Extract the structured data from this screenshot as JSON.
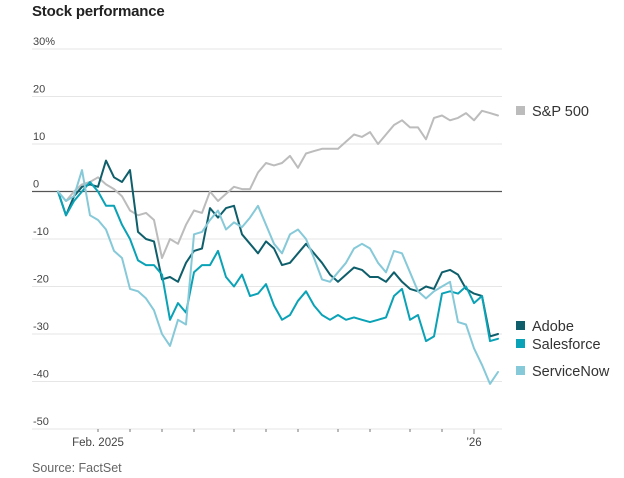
{
  "chart_data": {
    "type": "line",
    "title": "Stock performance",
    "source": "Source: FactSet",
    "xlabel": "",
    "ylabel": "",
    "ylim": [
      -50,
      30
    ],
    "y_ticks": [
      {
        "value": 30,
        "label": "30%"
      },
      {
        "value": 20,
        "label": "20"
      },
      {
        "value": 10,
        "label": "10"
      },
      {
        "value": 0,
        "label": "0"
      },
      {
        "value": -10,
        "label": "-10"
      },
      {
        "value": -20,
        "label": "-20"
      },
      {
        "value": -30,
        "label": "-30"
      },
      {
        "value": -40,
        "label": "-40"
      },
      {
        "value": -50,
        "label": "-50"
      }
    ],
    "x_range": [
      0,
      55
    ],
    "x_ticks": [
      {
        "x": 5,
        "label": "Feb. 2025"
      },
      {
        "x": 9,
        "label": ""
      },
      {
        "x": 13,
        "label": ""
      },
      {
        "x": 17,
        "label": ""
      },
      {
        "x": 22,
        "label": ""
      },
      {
        "x": 26,
        "label": ""
      },
      {
        "x": 30,
        "label": ""
      },
      {
        "x": 35,
        "label": ""
      },
      {
        "x": 39,
        "label": ""
      },
      {
        "x": 44,
        "label": ""
      },
      {
        "x": 48,
        "label": ""
      },
      {
        "x": 52,
        "label": "’26"
      }
    ],
    "grid": true,
    "series": [
      {
        "name": "S&P 500",
        "color": "#bcbcbc",
        "values": [
          0,
          -2,
          0,
          1.5,
          2,
          3,
          1.5,
          0.5,
          -1,
          -4,
          -5,
          -4.5,
          -6,
          -14,
          -10,
          -11,
          -7,
          -4,
          -4.5,
          0,
          -2,
          -0.5,
          1,
          0.5,
          0.5,
          4,
          6,
          5.5,
          6,
          7.5,
          5,
          8,
          8.5,
          9,
          9,
          9,
          10.5,
          12,
          11.5,
          12.5,
          10,
          12,
          14,
          15,
          13.5,
          13.5,
          11,
          15.5,
          16,
          15,
          15.5,
          16.5,
          15,
          17,
          16.5,
          16
        ]
      },
      {
        "name": "Adobe",
        "color": "#0e5f6b",
        "values": [
          0,
          -5,
          -1,
          1,
          1.5,
          1,
          6.5,
          3,
          2,
          4.5,
          -8.5,
          -10,
          -10.5,
          -18.5,
          -18,
          -19,
          -15,
          -12.5,
          -12,
          -3.5,
          -5.5,
          -3.5,
          -3,
          -9,
          -11,
          -13,
          -10.5,
          -12,
          -15.5,
          -15,
          -13,
          -11,
          -13,
          -15,
          -17.5,
          -19,
          -17.5,
          -16,
          -16.5,
          -18,
          -18,
          -19,
          -17,
          -19,
          -20.5,
          -21,
          -20,
          -20.5,
          -17,
          -16.5,
          -17.5,
          -20.5,
          -21.5,
          -22,
          -30.5,
          -30
        ]
      },
      {
        "name": "Salesforce",
        "color": "#0aa2b6",
        "values": [
          0,
          -5,
          -2,
          0,
          2,
          0,
          -3,
          -3,
          -7,
          -10,
          -14.5,
          -15.5,
          -15.5,
          -17.5,
          -27,
          -23.5,
          -25.5,
          -17,
          -15.5,
          -15.5,
          -12.5,
          -18,
          -20,
          -17.5,
          -22,
          -21.5,
          -19.5,
          -24,
          -27,
          -26,
          -23,
          -21,
          -24,
          -26,
          -27,
          -26,
          -27,
          -26.5,
          -27,
          -27.5,
          -27,
          -26.5,
          -22,
          -20.5,
          -27,
          -26,
          -31.5,
          -30.5,
          -21.5,
          -21,
          -21.5,
          -20,
          -23.5,
          -22,
          -31.5,
          -31
        ]
      },
      {
        "name": "ServiceNow",
        "color": "#86c9d8",
        "values": [
          0,
          -2,
          -1,
          4.5,
          -5,
          -6,
          -8,
          -12.5,
          -14,
          -20.5,
          -21,
          -22.5,
          -25,
          -30,
          -32.5,
          -27,
          -28,
          -9,
          -8.5,
          -6,
          -4,
          -8,
          -6.5,
          -7.5,
          -5.5,
          -3,
          -7,
          -11,
          -13,
          -9,
          -8,
          -10,
          -14,
          -18.5,
          -19,
          -17,
          -15,
          -12,
          -11,
          -12,
          -15,
          -17,
          -12.5,
          -13,
          -17,
          -21,
          -22.5,
          -21,
          -20,
          -19,
          -27.5,
          -28,
          -33,
          -36.5,
          -40.5,
          -38
        ]
      }
    ],
    "legend": [
      {
        "name": "S&P 500",
        "color": "#bcbcbc",
        "position": "right, next to line end"
      },
      {
        "name": "Adobe",
        "color": "#0e5f6b",
        "position": "right"
      },
      {
        "name": "Salesforce",
        "color": "#0aa2b6",
        "position": "right"
      },
      {
        "name": "ServiceNow",
        "color": "#86c9d8",
        "position": "right"
      }
    ]
  }
}
